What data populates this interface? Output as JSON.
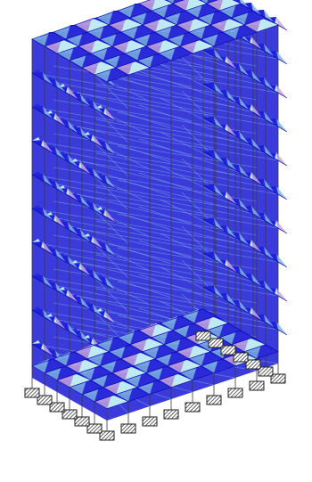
{
  "diagram": {
    "colors": {
      "background": "#ffffff",
      "frame_blue": "#1f1fe0",
      "plate_dark": "#0a0aa8",
      "plate_mid": "#2a2ad8",
      "plate_light": "#7fb4e6",
      "highlight_pink": "#c9a8e0",
      "highlight_cyan": "#bfeaf2",
      "column_line": "#3a3a3a",
      "support_fill": "#ffffff",
      "support_hatch": "#222222"
    },
    "icons": {
      "support": "hatched-fixed-support-icon",
      "plate": "pyramid-roof-plate-icon"
    }
  }
}
